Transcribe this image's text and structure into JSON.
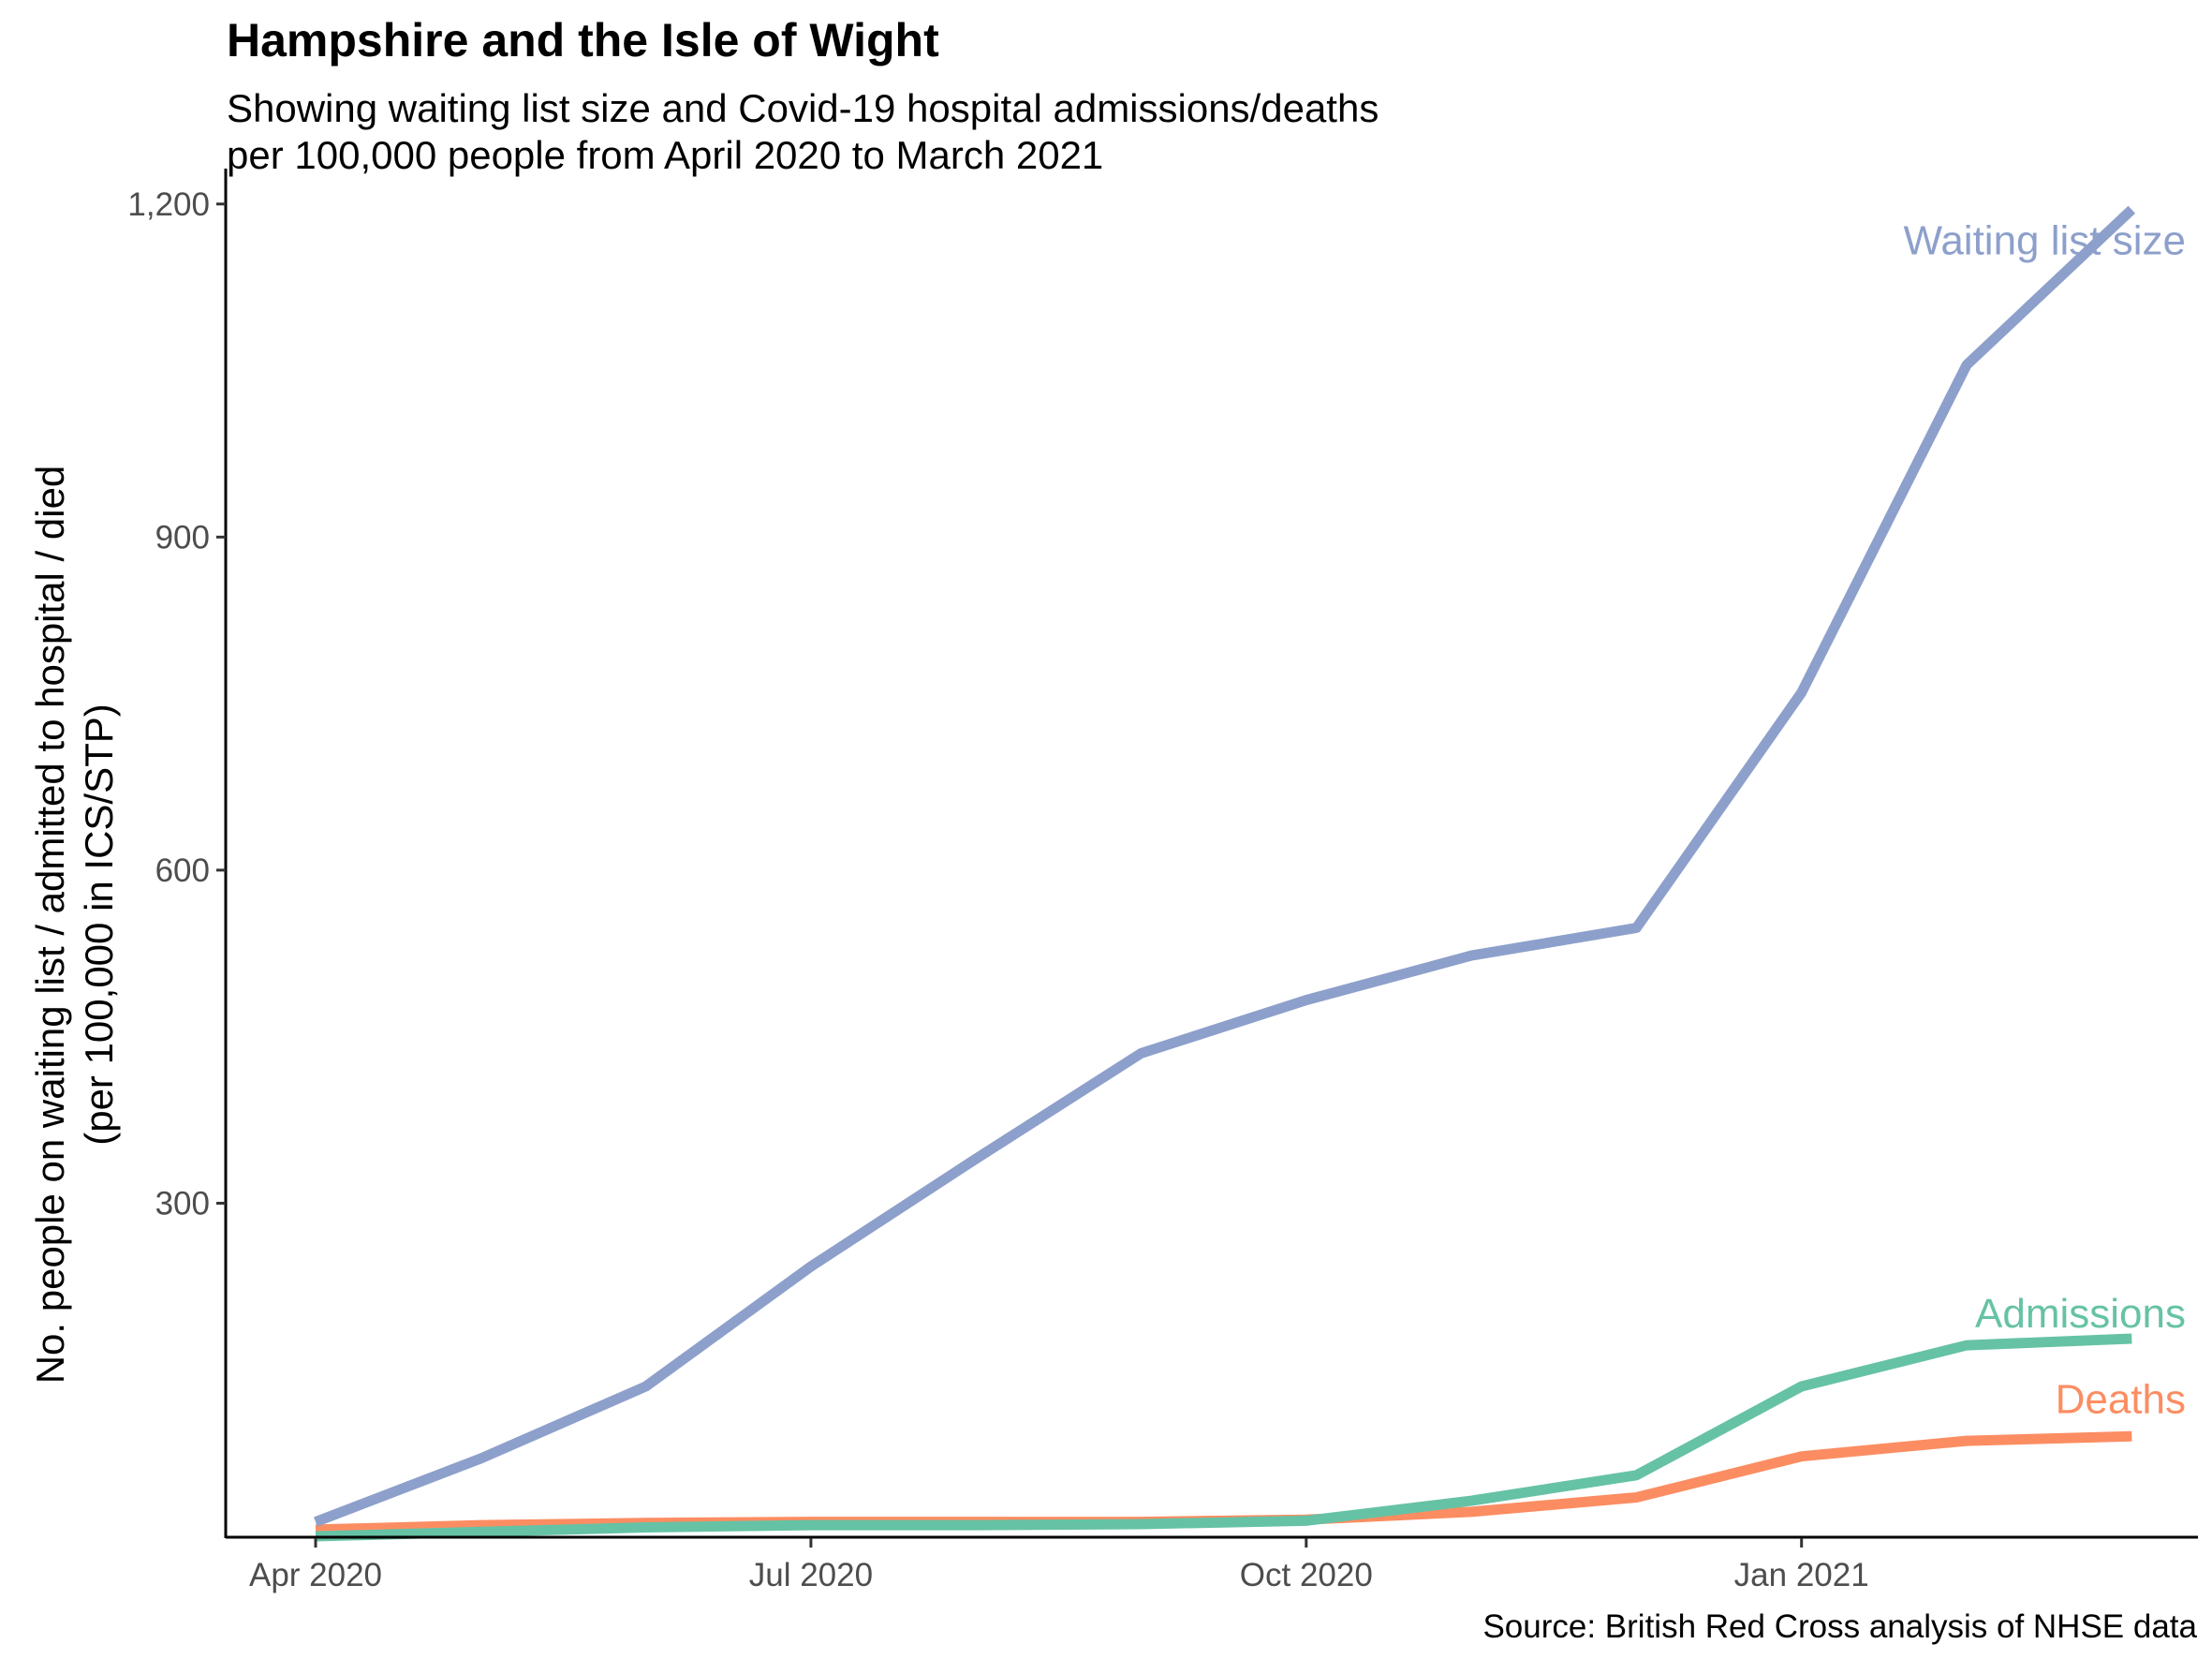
{
  "chart_data": {
    "type": "line",
    "title": "Hampshire and the Isle of Wight",
    "subtitle_lines": [
      "Showing waiting list size and Covid-19 hospital admissions/deaths",
      "per 100,000 people from April 2020 to March 2021"
    ],
    "xlabel": "",
    "ylabel_lines": [
      "No. people on waiting list / admitted to hospital / died",
      "(per 100,000 in ICS/STP)"
    ],
    "source": "Source: British Red Cross analysis of NHSE data",
    "x": [
      "2020-04",
      "2020-05",
      "2020-06",
      "2020-07",
      "2020-08",
      "2020-09",
      "2020-10",
      "2020-11",
      "2020-12",
      "2021-01",
      "2021-02",
      "2021-03"
    ],
    "x_ticks": [
      {
        "month": "2020-04",
        "label": "Apr 2020"
      },
      {
        "month": "2020-07",
        "label": "Jul 2020"
      },
      {
        "month": "2020-10",
        "label": "Oct 2020"
      },
      {
        "month": "2021-01",
        "label": "Jan 2021"
      }
    ],
    "y_ticks": [
      {
        "value": 300,
        "label": "300"
      },
      {
        "value": 600,
        "label": "600"
      },
      {
        "value": 900,
        "label": "900"
      },
      {
        "value": 1200,
        "label": "1,200"
      }
    ],
    "ylim": [
      0,
      1215
    ],
    "grid": false,
    "legend": "direct labels at line ends",
    "series": [
      {
        "name": "Waiting list size",
        "color": "#8DA0CB",
        "values": [
          13,
          70,
          135,
          243,
          340,
          435,
          483,
          523,
          548,
          760,
          1055,
          1195
        ]
      },
      {
        "name": "Admissions",
        "color": "#66C2A5",
        "values": [
          0,
          4,
          8,
          10,
          10,
          11,
          14,
          32,
          55,
          135,
          172,
          178
        ]
      },
      {
        "name": "Deaths",
        "color": "#FC8D62",
        "values": [
          6,
          10,
          12,
          13,
          13,
          13,
          15,
          22,
          35,
          72,
          86,
          90
        ]
      }
    ]
  }
}
